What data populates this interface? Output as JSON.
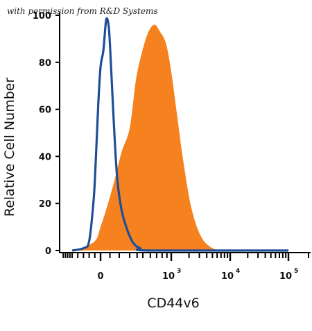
{
  "watermark": "with permission from R&D Systems",
  "chart_data": {
    "type": "area",
    "xlabel": "CD44v6",
    "ylabel": "Relative Cell Number",
    "ylim": [
      0,
      100
    ],
    "yticks": [
      0,
      20,
      40,
      60,
      80,
      100
    ],
    "xticks": [
      {
        "value": 0,
        "base": "0",
        "exp": ""
      },
      {
        "value": 1000,
        "base": "10",
        "exp": "3"
      },
      {
        "value": 10000,
        "base": "10",
        "exp": "4"
      },
      {
        "value": 100000,
        "base": "10",
        "exp": "5"
      }
    ],
    "colors": {
      "stained": "#f5821f",
      "isotype": "#1f4e96",
      "axis": "#000000"
    },
    "series": [
      {
        "style": "filled",
        "color": "#f5821f",
        "x": [
          -400,
          -100,
          0,
          80,
          150,
          220,
          300,
          380,
          460,
          560,
          660,
          760,
          880,
          1000,
          1250,
          1600,
          2200,
          3200,
          5000,
          8000,
          15000,
          100000
        ],
        "y": [
          0,
          4,
          10,
          20,
          30,
          42,
          52,
          72,
          82,
          92,
          96,
          93,
          88,
          76,
          58,
          38,
          18,
          6,
          1,
          0.3,
          0,
          0
        ]
      },
      {
        "style": "line",
        "color": "#1f4e96",
        "x": [
          -500,
          -300,
          -200,
          -120,
          -80,
          -40,
          0,
          30,
          60,
          85,
          100,
          120,
          150,
          180,
          220,
          280,
          350,
          450,
          600,
          100000
        ],
        "y": [
          0,
          1,
          4,
          22,
          40,
          62,
          78,
          85,
          98,
          96,
          88,
          72,
          48,
          30,
          17,
          8,
          3,
          1,
          0,
          0
        ]
      }
    ]
  }
}
